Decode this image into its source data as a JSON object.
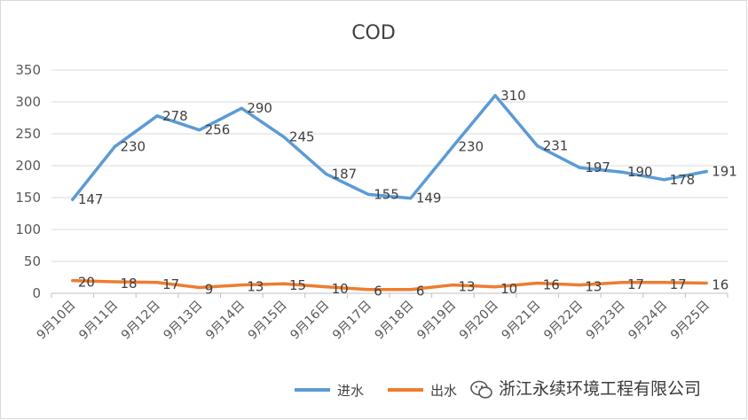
{
  "chart_data": {
    "type": "line",
    "title": "COD",
    "categories": [
      "9月10日",
      "9月11日",
      "9月12日",
      "9月13日",
      "9月14日",
      "9月15日",
      "9月16日",
      "9月17日",
      "9月18日",
      "9月19日",
      "9月20日",
      "9月21日",
      "9月22日",
      "9月23日",
      "9月24日",
      "9月25日"
    ],
    "series": [
      {
        "name": "进水",
        "color": "#5b9bd5",
        "values": [
          147,
          230,
          278,
          256,
          290,
          245,
          187,
          155,
          149,
          230,
          310,
          231,
          197,
          190,
          178,
          191
        ],
        "labels": [
          "147",
          "230",
          "278",
          "256",
          "290",
          "245",
          "187",
          "155",
          "149",
          "230",
          "310",
          "231",
          "197",
          "190",
          "178",
          "191"
        ]
      },
      {
        "name": "出水",
        "color": "#ed7d31",
        "values": [
          20,
          18,
          17,
          9,
          13,
          15,
          10,
          6,
          6,
          13,
          10,
          16,
          13,
          17,
          17,
          16
        ],
        "labels": [
          "20",
          "18",
          "17",
          "9",
          "13",
          "15",
          "10",
          "6",
          "6",
          "13",
          "10",
          "16",
          "13",
          "17",
          "17",
          "16"
        ]
      }
    ],
    "yticks": [
      0,
      50,
      100,
      150,
      200,
      250,
      300,
      350
    ],
    "ylim": [
      0,
      350
    ],
    "grid": true,
    "legend": "bottom"
  },
  "watermark": {
    "text": "浙江永续环境工程有限公司",
    "icon": "wechat-icon"
  }
}
